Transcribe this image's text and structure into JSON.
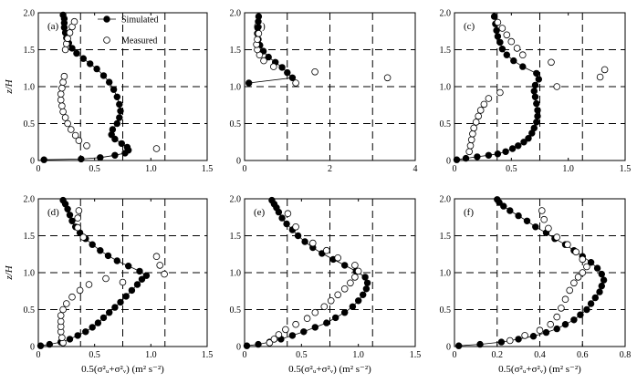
{
  "figure": {
    "ylabel": "z/H",
    "xlabel": "0.5(σ²ᵤ+σ²ᵥ)  (m² s⁻²)",
    "legend": {
      "simulated": "Simulated",
      "measured": "Measured"
    }
  },
  "chart_data": [
    {
      "type": "scatter",
      "label": "(a)",
      "xlim": [
        0,
        1.5
      ],
      "ylim": [
        0,
        2.0
      ],
      "xticks": [
        "0",
        "0.5",
        "1.0",
        "1.5"
      ],
      "yticks": [
        "0",
        "0.5",
        "1.0",
        "1.5",
        "2.0"
      ],
      "grid": true,
      "legend": "top-left",
      "series": [
        {
          "name": "Simulated",
          "line": true,
          "x": [
            0.05,
            0.38,
            0.55,
            0.68,
            0.77,
            0.8,
            0.79,
            0.74,
            0.68,
            0.65,
            0.66,
            0.7,
            0.72,
            0.73,
            0.72,
            0.7,
            0.67,
            0.63,
            0.58,
            0.52,
            0.46,
            0.4,
            0.34,
            0.3,
            0.27,
            0.25,
            0.24,
            0.23,
            0.23,
            0.23,
            0.22
          ],
          "y": [
            0.01,
            0.02,
            0.04,
            0.07,
            0.1,
            0.14,
            0.18,
            0.23,
            0.29,
            0.35,
            0.42,
            0.5,
            0.58,
            0.67,
            0.76,
            0.86,
            0.96,
            1.06,
            1.15,
            1.24,
            1.31,
            1.38,
            1.45,
            1.52,
            1.59,
            1.66,
            1.73,
            1.8,
            1.86,
            1.92,
            1.97
          ]
        },
        {
          "name": "Measured",
          "line": false,
          "x": [
            1.05,
            0.43,
            0.36,
            0.33,
            0.29,
            0.26,
            0.24,
            0.22,
            0.21,
            0.2,
            0.2,
            0.21,
            0.22,
            0.23,
            0.24,
            0.25,
            0.26,
            0.28,
            0.3,
            0.32
          ],
          "y": [
            0.16,
            0.2,
            0.27,
            0.34,
            0.42,
            0.5,
            0.58,
            0.66,
            0.74,
            0.82,
            0.9,
            0.98,
            1.06,
            1.14,
            1.5,
            1.58,
            1.65,
            1.73,
            1.81,
            1.88
          ]
        }
      ]
    },
    {
      "type": "scatter",
      "label": "(b)",
      "xlim": [
        0,
        4
      ],
      "ylim": [
        0,
        2.0
      ],
      "xticks": [
        "0",
        "2",
        "4"
      ],
      "yticks": [
        "0",
        "0.5",
        "1.0",
        "1.5",
        "2.0"
      ],
      "grid": true,
      "legend": "none",
      "series": [
        {
          "name": "Simulated",
          "line": true,
          "x": [
            0.1,
            1.12,
            1.0,
            0.88,
            0.72,
            0.56,
            0.44,
            0.36,
            0.32,
            0.3,
            0.31,
            0.32,
            0.33
          ],
          "y": [
            1.05,
            1.12,
            1.19,
            1.26,
            1.33,
            1.4,
            1.48,
            1.56,
            1.64,
            1.72,
            1.8,
            1.88,
            1.95
          ]
        },
        {
          "name": "Measured",
          "line": false,
          "x": [
            1.2,
            3.35,
            1.65,
            0.68,
            0.45,
            0.35,
            0.3,
            0.28,
            0.3,
            0.33
          ],
          "y": [
            1.05,
            1.12,
            1.2,
            1.27,
            1.35,
            1.43,
            1.5,
            1.57,
            1.64,
            1.72
          ]
        }
      ]
    },
    {
      "type": "scatter",
      "label": "(c)",
      "xlim": [
        0,
        1.5
      ],
      "ylim": [
        0,
        2.0
      ],
      "xticks": [
        "0",
        "0.5",
        "1.0",
        "1.5"
      ],
      "yticks": [
        "0",
        "0.5",
        "1.0",
        "1.5",
        "2.0"
      ],
      "grid": true,
      "legend": "none",
      "series": [
        {
          "name": "Simulated",
          "line": true,
          "x": [
            0.02,
            0.1,
            0.2,
            0.3,
            0.38,
            0.45,
            0.51,
            0.56,
            0.61,
            0.65,
            0.68,
            0.7,
            0.72,
            0.73,
            0.73,
            0.72,
            0.71,
            0.7,
            0.71,
            0.74,
            0.72,
            0.6,
            0.52,
            0.46,
            0.42,
            0.4,
            0.38,
            0.37,
            0.36,
            0.35
          ],
          "y": [
            0.01,
            0.03,
            0.05,
            0.07,
            0.09,
            0.12,
            0.16,
            0.2,
            0.25,
            0.3,
            0.37,
            0.44,
            0.52,
            0.6,
            0.68,
            0.77,
            0.86,
            0.94,
            1.02,
            1.1,
            1.18,
            1.27,
            1.35,
            1.43,
            1.51,
            1.6,
            1.68,
            1.76,
            1.85,
            1.95
          ]
        },
        {
          "name": "Measured",
          "line": false,
          "x": [
            0.13,
            0.14,
            0.15,
            0.16,
            0.17,
            0.19,
            0.21,
            0.23,
            0.26,
            0.3,
            0.4,
            0.9,
            1.28,
            1.32,
            0.85,
            0.6,
            0.55,
            0.5,
            0.46,
            0.42,
            0.38
          ],
          "y": [
            0.12,
            0.2,
            0.28,
            0.36,
            0.44,
            0.52,
            0.6,
            0.68,
            0.76,
            0.84,
            0.92,
            1.0,
            1.13,
            1.23,
            1.33,
            1.43,
            1.52,
            1.61,
            1.7,
            1.79,
            1.87
          ]
        }
      ]
    },
    {
      "type": "scatter",
      "label": "(d)",
      "xlim": [
        0,
        1.5
      ],
      "ylim": [
        0,
        2.0
      ],
      "xticks": [
        "0",
        "0.5",
        "1.0",
        "1.5"
      ],
      "yticks": [
        "0",
        "0.5",
        "1.0",
        "1.5",
        "2.0"
      ],
      "grid": true,
      "legend": "none",
      "series": [
        {
          "name": "Simulated",
          "line": true,
          "x": [
            0.02,
            0.1,
            0.2,
            0.28,
            0.35,
            0.42,
            0.48,
            0.53,
            0.58,
            0.63,
            0.68,
            0.73,
            0.78,
            0.83,
            0.88,
            0.92,
            0.96,
            0.9,
            0.8,
            0.7,
            0.62,
            0.55,
            0.48,
            0.42,
            0.37,
            0.33,
            0.3,
            0.28,
            0.26,
            0.24,
            0.22
          ],
          "y": [
            0.01,
            0.03,
            0.06,
            0.1,
            0.15,
            0.2,
            0.26,
            0.32,
            0.39,
            0.46,
            0.53,
            0.6,
            0.68,
            0.76,
            0.84,
            0.91,
            0.96,
            1.02,
            1.09,
            1.16,
            1.23,
            1.3,
            1.38,
            1.46,
            1.54,
            1.62,
            1.7,
            1.78,
            1.86,
            1.93,
            1.98
          ]
        },
        {
          "name": "Measured",
          "line": false,
          "x": [
            0.22,
            0.21,
            0.2,
            0.2,
            0.2,
            0.2,
            0.22,
            0.25,
            0.3,
            0.37,
            0.45,
            0.6,
            0.75,
            1.12,
            1.08,
            1.05,
            0.4,
            0.35,
            0.35,
            0.36
          ],
          "y": [
            0.05,
            0.12,
            0.2,
            0.27,
            0.34,
            0.42,
            0.5,
            0.58,
            0.67,
            0.76,
            0.84,
            0.92,
            0.87,
            0.98,
            1.1,
            1.22,
            1.48,
            1.61,
            1.74,
            1.84
          ]
        }
      ]
    },
    {
      "type": "scatter",
      "label": "(e)",
      "xlim": [
        0,
        1.5
      ],
      "ylim": [
        0,
        2.0
      ],
      "xticks": [
        "0",
        "0.5",
        "1.0",
        "1.5"
      ],
      "yticks": [
        "0",
        "0.5",
        "1.0",
        "1.5",
        "2.0"
      ],
      "grid": true,
      "legend": "none",
      "series": [
        {
          "name": "Simulated",
          "line": true,
          "x": [
            0.02,
            0.12,
            0.22,
            0.32,
            0.42,
            0.52,
            0.62,
            0.72,
            0.8,
            0.88,
            0.95,
            1.0,
            1.04,
            1.07,
            1.08,
            1.06,
            0.98,
            0.88,
            0.78,
            0.68,
            0.6,
            0.53,
            0.47,
            0.42,
            0.37,
            0.33,
            0.3,
            0.28,
            0.26,
            0.24
          ],
          "y": [
            0.01,
            0.03,
            0.06,
            0.1,
            0.15,
            0.2,
            0.26,
            0.32,
            0.39,
            0.46,
            0.54,
            0.62,
            0.7,
            0.78,
            0.86,
            0.94,
            1.02,
            1.1,
            1.18,
            1.26,
            1.34,
            1.42,
            1.5,
            1.58,
            1.66,
            1.74,
            1.82,
            1.88,
            1.93,
            1.98
          ]
        },
        {
          "name": "Measured",
          "line": false,
          "x": [
            0.22,
            0.26,
            0.3,
            0.36,
            0.45,
            0.55,
            0.62,
            0.7,
            0.76,
            0.82,
            0.88,
            0.93,
            0.97,
            1.0,
            0.97,
            0.82,
            0.72,
            0.6,
            0.45,
            0.38
          ],
          "y": [
            0.05,
            0.1,
            0.16,
            0.23,
            0.3,
            0.38,
            0.46,
            0.54,
            0.62,
            0.7,
            0.78,
            0.86,
            0.94,
            1.02,
            1.1,
            1.2,
            1.3,
            1.4,
            1.62,
            1.8
          ]
        }
      ]
    },
    {
      "type": "scatter",
      "label": "(f)",
      "xlim": [
        0,
        0.8
      ],
      "ylim": [
        0,
        2.0
      ],
      "xticks": [
        "0",
        "0.2",
        "0.4",
        "0.6",
        "0.8"
      ],
      "yticks": [
        "0",
        "0.5",
        "1.0",
        "1.5",
        "2.0"
      ],
      "grid": true,
      "legend": "none",
      "series": [
        {
          "name": "Simulated",
          "line": true,
          "x": [
            0.02,
            0.12,
            0.22,
            0.3,
            0.37,
            0.43,
            0.48,
            0.52,
            0.56,
            0.59,
            0.62,
            0.64,
            0.66,
            0.68,
            0.69,
            0.7,
            0.69,
            0.67,
            0.64,
            0.6,
            0.56,
            0.52,
            0.47,
            0.43,
            0.38,
            0.34,
            0.3,
            0.26,
            0.23,
            0.21,
            0.2
          ],
          "y": [
            0.01,
            0.03,
            0.06,
            0.1,
            0.14,
            0.19,
            0.24,
            0.3,
            0.36,
            0.43,
            0.5,
            0.58,
            0.66,
            0.74,
            0.82,
            0.9,
            0.98,
            1.06,
            1.14,
            1.22,
            1.3,
            1.38,
            1.46,
            1.54,
            1.62,
            1.7,
            1.77,
            1.84,
            1.9,
            1.95,
            1.99
          ]
        },
        {
          "name": "Measured",
          "line": false,
          "x": [
            0.26,
            0.33,
            0.4,
            0.45,
            0.48,
            0.5,
            0.52,
            0.54,
            0.56,
            0.58,
            0.6,
            0.62,
            0.6,
            0.57,
            0.53,
            0.48,
            0.44,
            0.42,
            0.41
          ],
          "y": [
            0.08,
            0.15,
            0.22,
            0.3,
            0.4,
            0.52,
            0.64,
            0.76,
            0.86,
            0.94,
            1.0,
            1.08,
            1.18,
            1.28,
            1.38,
            1.48,
            1.6,
            1.72,
            1.84
          ]
        }
      ]
    }
  ]
}
